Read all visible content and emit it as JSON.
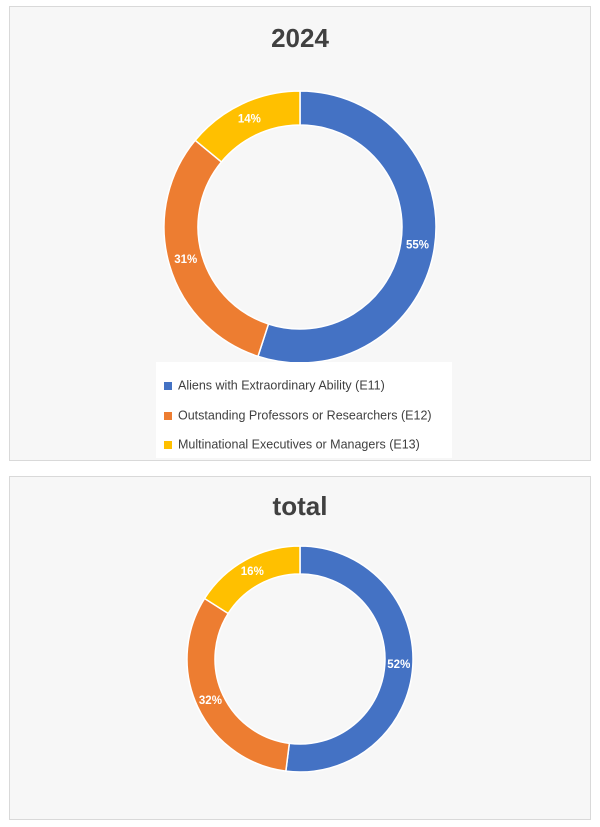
{
  "chart_data": [
    {
      "type": "pie",
      "title": "2024",
      "categories": [
        "Aliens with Extraordinary Ability (E11)",
        "Outstanding Professors or Researchers (E12)",
        "Multinational Executives or Managers (E13)"
      ],
      "values": [
        55,
        31,
        14
      ],
      "data_labels": [
        "55%",
        "31%",
        "14%"
      ],
      "colors": [
        "#4472c4",
        "#ed7d31",
        "#ffc000"
      ],
      "legend": "bottom",
      "donut": true
    },
    {
      "type": "pie",
      "title": "total",
      "categories": [
        "Aliens with Extraordinary Ability (E11)",
        "Outstanding Professors or Researchers (E12)",
        "Multinational Executives or Managers (E13)"
      ],
      "values": [
        52,
        32,
        16
      ],
      "data_labels": [
        "52%",
        "32%",
        "16%"
      ],
      "colors": [
        "#4472c4",
        "#ed7d31",
        "#ffc000"
      ],
      "legend": "none",
      "donut": true
    }
  ]
}
